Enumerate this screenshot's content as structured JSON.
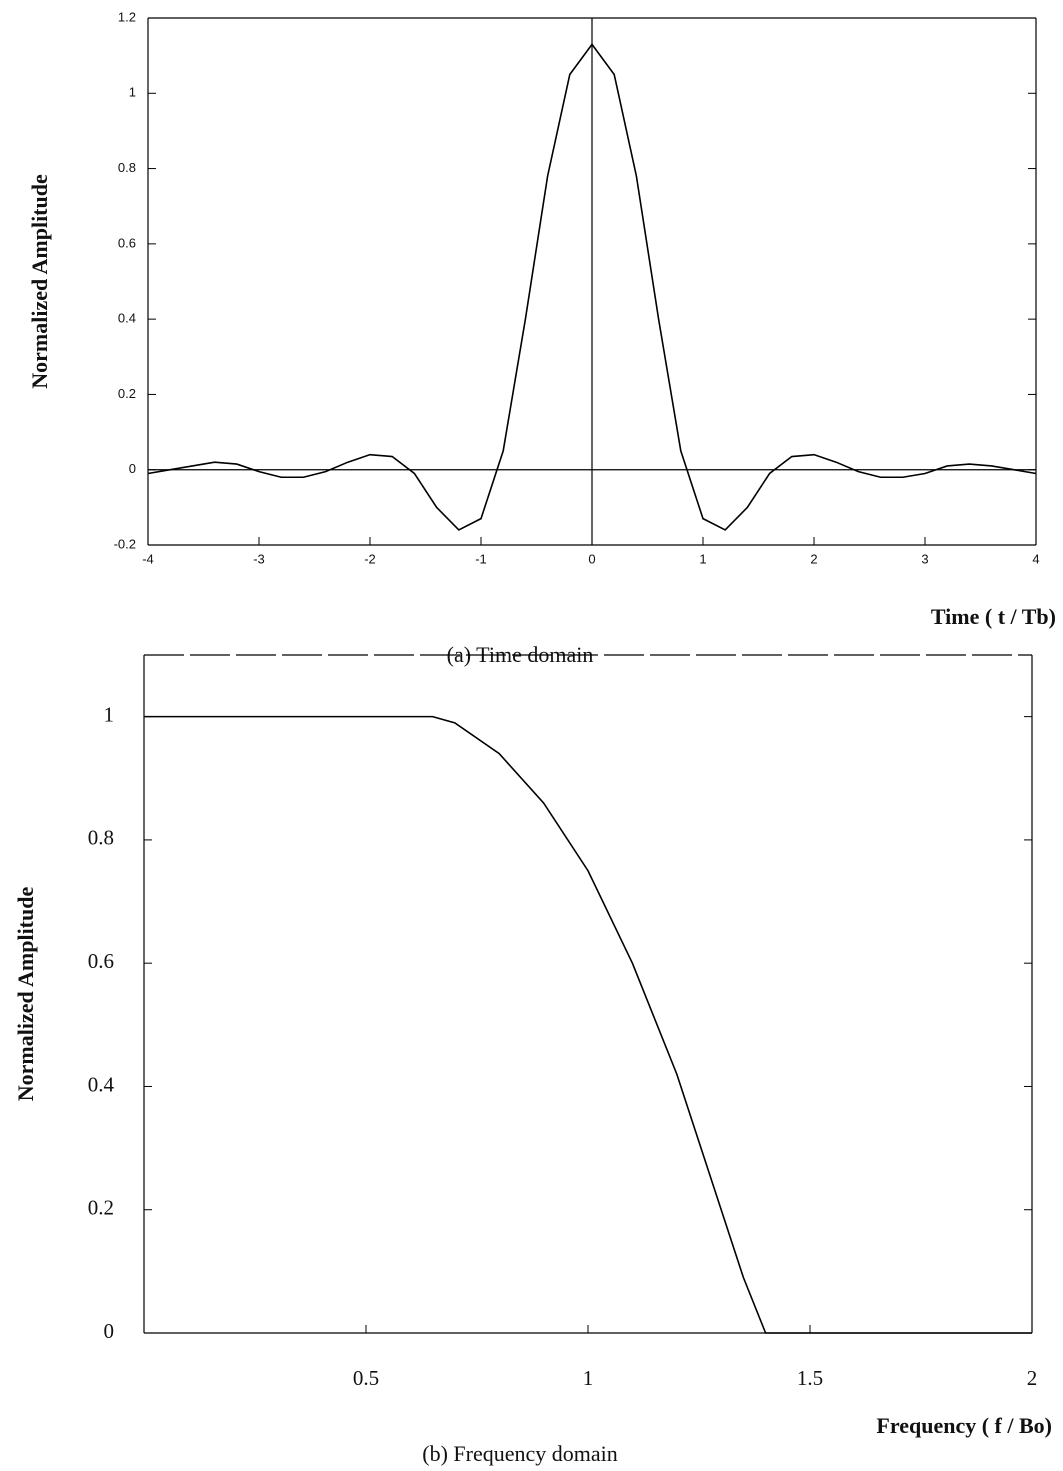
{
  "chart_data": [
    {
      "type": "line",
      "ylabel": "Normalized Amplitude",
      "xlabel": "Time ( t / Tb)",
      "caption": "(a)  Time domain",
      "x": [
        -4,
        -3.8,
        -3.6,
        -3.4,
        -3.2,
        -3,
        -2.8,
        -2.6,
        -2.4,
        -2.2,
        -2,
        -1.8,
        -1.6,
        -1.4,
        -1.2,
        -1,
        -0.8,
        -0.6,
        -0.4,
        -0.2,
        0,
        0.2,
        0.4,
        0.6,
        0.8,
        1,
        1.2,
        1.4,
        1.6,
        1.8,
        2,
        2.2,
        2.4,
        2.6,
        2.8,
        3,
        3.2,
        3.4,
        3.6,
        3.8,
        4
      ],
      "series": [
        {
          "color": "#000000",
          "values": [
            -0.01,
            0,
            0.01,
            0.02,
            0.015,
            -0.005,
            -0.02,
            -0.02,
            -0.005,
            0.02,
            0.04,
            0.035,
            -0.01,
            -0.1,
            -0.16,
            -0.13,
            0.05,
            0.4,
            0.78,
            1.05,
            1.13,
            1.05,
            0.78,
            0.4,
            0.05,
            -0.13,
            -0.16,
            -0.1,
            -0.01,
            0.035,
            0.04,
            0.02,
            -0.005,
            -0.02,
            -0.02,
            -0.01,
            0.01,
            0.015,
            0.01,
            0,
            -0.01
          ]
        }
      ],
      "xlim": [
        -4,
        4
      ],
      "xticks": [
        -4,
        -3,
        -2,
        -1,
        0,
        1,
        2,
        3,
        4
      ],
      "ylim": [
        -0.2,
        1.2
      ],
      "yticks": [
        -0.2,
        0,
        0.2,
        0.4,
        0.6,
        0.8,
        1,
        1.2
      ]
    },
    {
      "type": "line",
      "ylabel": "Normalized Amplitude",
      "xlabel": "Frequency ( f / Bo)",
      "caption": "(b)  Frequency domain",
      "x": [
        0,
        0.65,
        0.7,
        0.8,
        0.9,
        1.0,
        1.1,
        1.2,
        1.3,
        1.35,
        1.4,
        2
      ],
      "series": [
        {
          "color": "#000000",
          "values": [
            1,
            1,
            0.99,
            0.94,
            0.86,
            0.75,
            0.6,
            0.42,
            0.2,
            0.09,
            0,
            0
          ]
        }
      ],
      "xlim": [
        0,
        2
      ],
      "xticks": [
        0.5,
        1,
        1.5,
        2
      ],
      "ylim": [
        0,
        1.1
      ],
      "yticks": [
        0,
        0.2,
        0.4,
        0.6,
        0.8,
        1
      ]
    }
  ]
}
